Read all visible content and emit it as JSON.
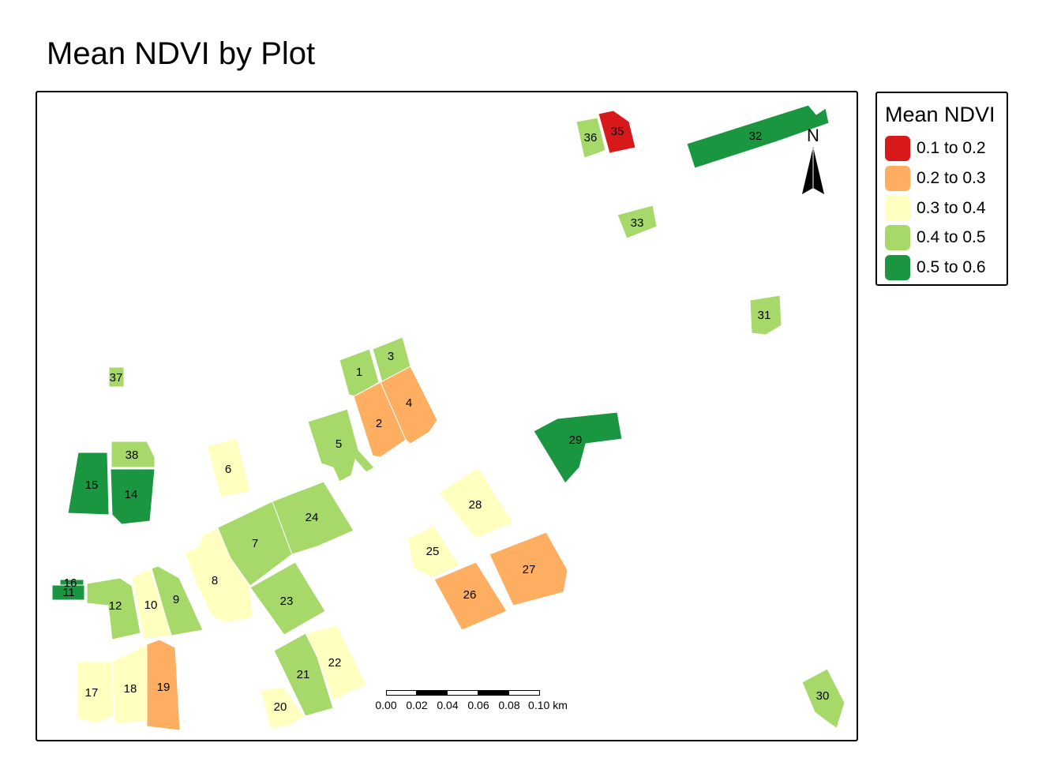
{
  "title": "Mean NDVI by Plot",
  "legend": {
    "title": "Mean NDVI",
    "classes": [
      {
        "label": "0.1 to 0.2",
        "color": "#d7191c"
      },
      {
        "label": "0.2 to 0.3",
        "color": "#fdae61"
      },
      {
        "label": "0.3 to 0.4",
        "color": "#ffffbf"
      },
      {
        "label": "0.4 to 0.5",
        "color": "#a6d96a"
      },
      {
        "label": "0.5 to 0.6",
        "color": "#1a9641"
      }
    ]
  },
  "north_arrow": {
    "label": "N",
    "icon": "north-arrow-icon"
  },
  "scale_bar": {
    "ticks": [
      "0.00",
      "0.02",
      "0.04",
      "0.06",
      "0.08",
      "0.10 km"
    ]
  },
  "plots": [
    {
      "id": "1",
      "ndvi_class": 3
    },
    {
      "id": "2",
      "ndvi_class": 1
    },
    {
      "id": "3",
      "ndvi_class": 3
    },
    {
      "id": "4",
      "ndvi_class": 1
    },
    {
      "id": "5",
      "ndvi_class": 3
    },
    {
      "id": "6",
      "ndvi_class": 2
    },
    {
      "id": "7",
      "ndvi_class": 3
    },
    {
      "id": "8",
      "ndvi_class": 2
    },
    {
      "id": "9",
      "ndvi_class": 3
    },
    {
      "id": "10",
      "ndvi_class": 2
    },
    {
      "id": "11",
      "ndvi_class": 4
    },
    {
      "id": "12",
      "ndvi_class": 3
    },
    {
      "id": "14",
      "ndvi_class": 4
    },
    {
      "id": "15",
      "ndvi_class": 4
    },
    {
      "id": "16",
      "ndvi_class": 4
    },
    {
      "id": "17",
      "ndvi_class": 2
    },
    {
      "id": "18",
      "ndvi_class": 2
    },
    {
      "id": "19",
      "ndvi_class": 1
    },
    {
      "id": "20",
      "ndvi_class": 2
    },
    {
      "id": "21",
      "ndvi_class": 3
    },
    {
      "id": "22",
      "ndvi_class": 2
    },
    {
      "id": "23",
      "ndvi_class": 3
    },
    {
      "id": "24",
      "ndvi_class": 3
    },
    {
      "id": "25",
      "ndvi_class": 2
    },
    {
      "id": "26",
      "ndvi_class": 1
    },
    {
      "id": "27",
      "ndvi_class": 1
    },
    {
      "id": "28",
      "ndvi_class": 2
    },
    {
      "id": "29",
      "ndvi_class": 4
    },
    {
      "id": "30",
      "ndvi_class": 3
    },
    {
      "id": "31",
      "ndvi_class": 3
    },
    {
      "id": "32",
      "ndvi_class": 4
    },
    {
      "id": "33",
      "ndvi_class": 3
    },
    {
      "id": "35",
      "ndvi_class": 0
    },
    {
      "id": "36",
      "ndvi_class": 3
    },
    {
      "id": "37",
      "ndvi_class": 3
    },
    {
      "id": "38",
      "ndvi_class": 3
    }
  ]
}
